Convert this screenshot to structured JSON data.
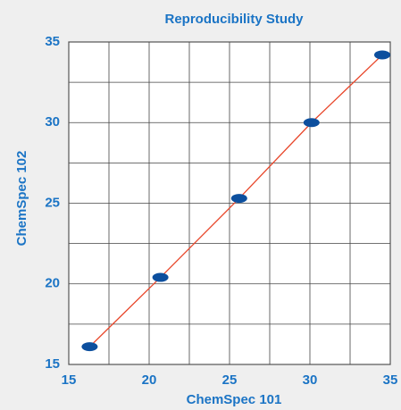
{
  "chart_data": {
    "type": "scatter",
    "title": "Reproducibility Study",
    "xlabel": "ChemSpec 101",
    "ylabel": "ChemSpec 102",
    "xlim": [
      15,
      35
    ],
    "ylim": [
      15,
      35
    ],
    "xticks": [
      15,
      20,
      25,
      30,
      35
    ],
    "yticks": [
      15,
      20,
      25,
      30,
      35
    ],
    "minor_xticks": [
      17.5,
      22.5,
      27.5,
      32.5
    ],
    "minor_yticks": [
      17.5,
      22.5,
      27.5,
      32.5
    ],
    "grid": true,
    "series": [
      {
        "color": "#0c4f9e",
        "line_color": "#e8462a",
        "x": [
          16.3,
          20.7,
          25.6,
          30.1,
          34.5
        ],
        "values": [
          16.1,
          20.4,
          25.3,
          30.0,
          34.2
        ]
      }
    ]
  }
}
